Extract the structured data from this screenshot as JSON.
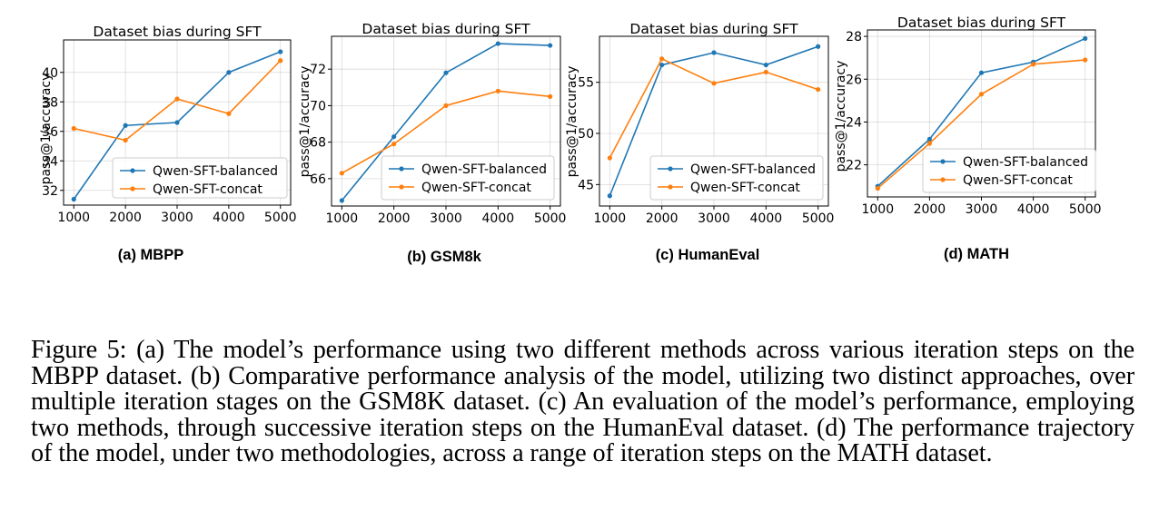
{
  "colors": {
    "balanced": "#1f77b4",
    "concat": "#ff7f0e"
  },
  "chart_data": [
    {
      "type": "line",
      "title": "Dataset bias during SFT",
      "subfigure_label": "(a) MBPP",
      "ylabel": "pass@1/accuracy",
      "xlabel": "",
      "x": [
        1000,
        2000,
        3000,
        4000,
        5000
      ],
      "xticks": [
        "1000",
        "2000",
        "3000",
        "4000",
        "5000"
      ],
      "yticks": [
        32,
        34,
        36,
        38,
        40
      ],
      "ylim": [
        31.0,
        42.2
      ],
      "grid": true,
      "legend": "lower-right",
      "series": [
        {
          "name": "Qwen-SFT-balanced",
          "color": "#1f77b4",
          "values": [
            31.4,
            36.4,
            36.6,
            40.0,
            41.4
          ]
        },
        {
          "name": "Qwen-SFT-concat",
          "color": "#ff7f0e",
          "values": [
            36.2,
            35.4,
            38.2,
            37.2,
            40.8
          ]
        }
      ]
    },
    {
      "type": "line",
      "title": "Dataset bias during SFT",
      "subfigure_label": "(b) GSM8k",
      "ylabel": "pass@1/accuracy",
      "xlabel": "",
      "x": [
        1000,
        2000,
        3000,
        4000,
        5000
      ],
      "xticks": [
        "1000",
        "2000",
        "3000",
        "4000",
        "5000"
      ],
      "yticks": [
        66,
        68,
        70,
        72
      ],
      "ylim": [
        64.5,
        73.8
      ],
      "grid": true,
      "legend": "lower-right",
      "series": [
        {
          "name": "Qwen-SFT-balanced",
          "color": "#1f77b4",
          "values": [
            64.8,
            68.3,
            71.8,
            73.4,
            73.3
          ]
        },
        {
          "name": "Qwen-SFT-concat",
          "color": "#ff7f0e",
          "values": [
            66.3,
            67.9,
            70.0,
            70.8,
            70.5
          ]
        }
      ]
    },
    {
      "type": "line",
      "title": "Dataset bias during SFT",
      "subfigure_label": "(c) HumanEval",
      "ylabel": "pass@1/accuracy",
      "xlabel": "",
      "x": [
        1000,
        2000,
        3000,
        4000,
        5000
      ],
      "xticks": [
        "1000",
        "2000",
        "3000",
        "4000",
        "5000"
      ],
      "yticks": [
        45,
        50,
        55
      ],
      "ylim": [
        42.9,
        59.5
      ],
      "grid": true,
      "legend": "lower-right",
      "series": [
        {
          "name": "Qwen-SFT-balanced",
          "color": "#1f77b4",
          "values": [
            43.9,
            56.7,
            57.9,
            56.7,
            58.5
          ]
        },
        {
          "name": "Qwen-SFT-concat",
          "color": "#ff7f0e",
          "values": [
            47.6,
            57.3,
            54.9,
            56.0,
            54.3
          ]
        }
      ]
    },
    {
      "type": "line",
      "title": "Dataset bias during SFT",
      "subfigure_label": "(d) MATH",
      "ylabel": "pass@1/accuracy",
      "xlabel": "",
      "x": [
        1000,
        2000,
        3000,
        4000,
        5000
      ],
      "xticks": [
        "1000",
        "2000",
        "3000",
        "4000",
        "5000"
      ],
      "yticks": [
        22,
        24,
        26,
        28
      ],
      "ylim": [
        20.5,
        28.3
      ],
      "grid": true,
      "legend": "lower-right",
      "series": [
        {
          "name": "Qwen-SFT-balanced",
          "color": "#1f77b4",
          "values": [
            21.0,
            23.2,
            26.3,
            26.8,
            27.9
          ]
        },
        {
          "name": "Qwen-SFT-concat",
          "color": "#ff7f0e",
          "values": [
            20.9,
            23.0,
            25.3,
            26.7,
            26.9
          ]
        }
      ]
    }
  ],
  "caption": "Figure 5: (a) The model’s performance using two different methods across various iteration steps on the MBPP dataset. (b) Comparative performance analysis of the model, utilizing two distinct approaches, over multiple iteration stages on the GSM8K dataset. (c) An evaluation of the model’s performance, employing two methods, through successive iteration steps on the HumanEval dataset. (d) The performance trajectory of the model, under two methodologies, across a range of iteration steps on the MATH dataset."
}
